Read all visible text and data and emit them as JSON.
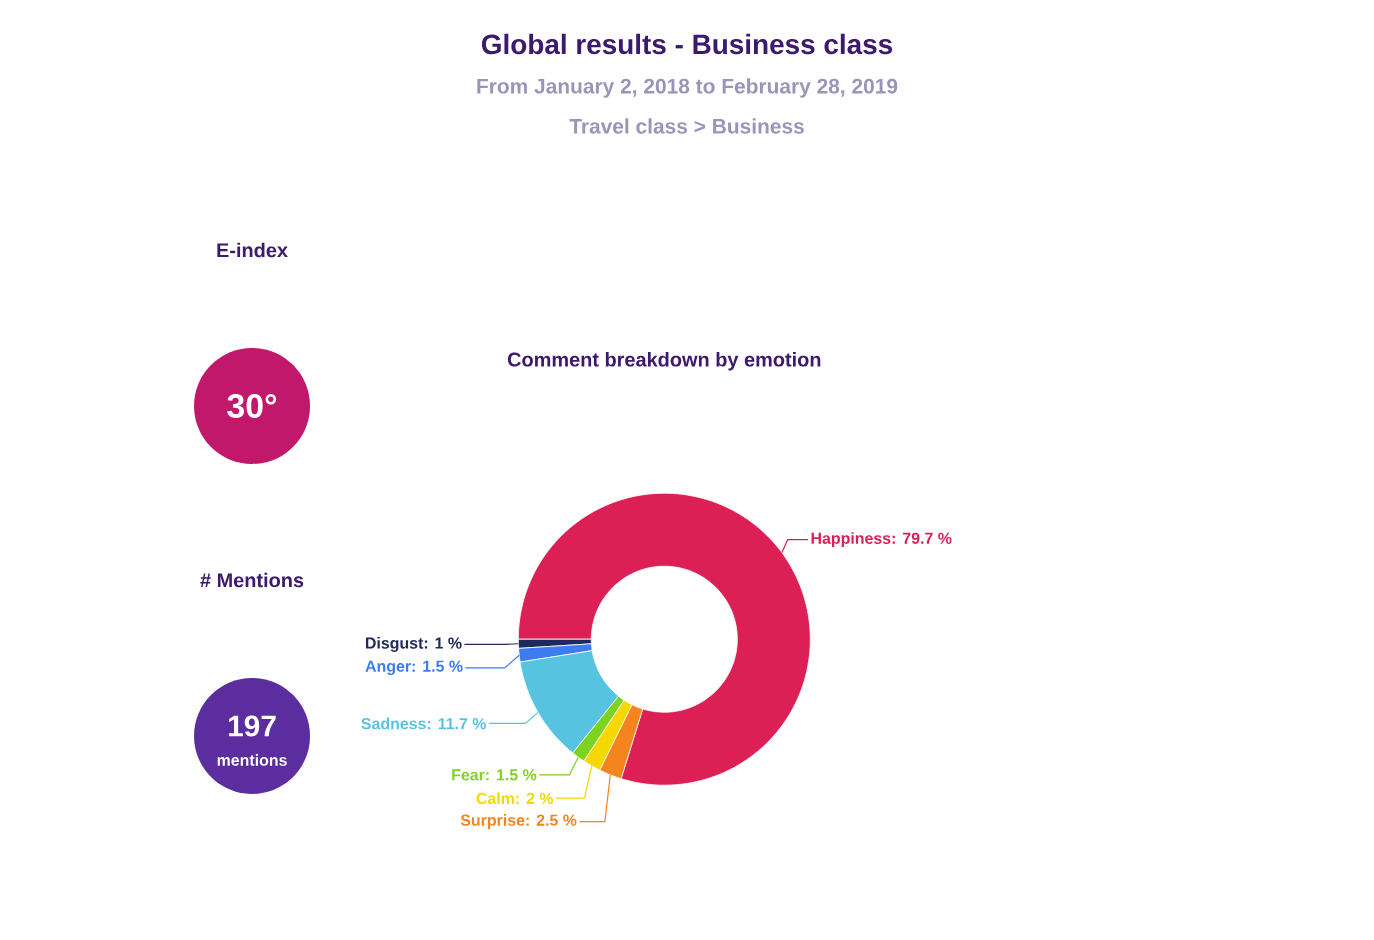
{
  "chart_data": [
    {
      "type": "other",
      "title": "Global results - Business class",
      "subtitle": "From January 2, 2018 to February 28, 2019",
      "annotations": [
        "Travel class > Business"
      ]
    },
    {
      "type": "other",
      "title": "E-index",
      "annotations": [
        "30°"
      ],
      "color": "#c2186b"
    },
    {
      "type": "other",
      "title": "# Mentions",
      "annotations": [
        "197",
        "mentions"
      ],
      "color": "#5b2d9e"
    },
    {
      "type": "donut",
      "title": "Comment breakdown by emotion",
      "categories": [
        "Happiness: 79.7 %",
        "Disgust: 1 %",
        "Anger: 1.5 %",
        "Sadness: 11.7 %",
        "Fear: 1.5 %",
        "Calm: 2 %",
        "Surprise: 2.5 %"
      ],
      "values": [
        79.7,
        1,
        1.5,
        11.7,
        1.5,
        2,
        2.5
      ],
      "colors": [
        "#dc2055",
        "#1f2a5c",
        "#3d7bf0",
        "#56c4e0",
        "#7ed321",
        "#f5d800",
        "#f5841f"
      ]
    }
  ]
}
